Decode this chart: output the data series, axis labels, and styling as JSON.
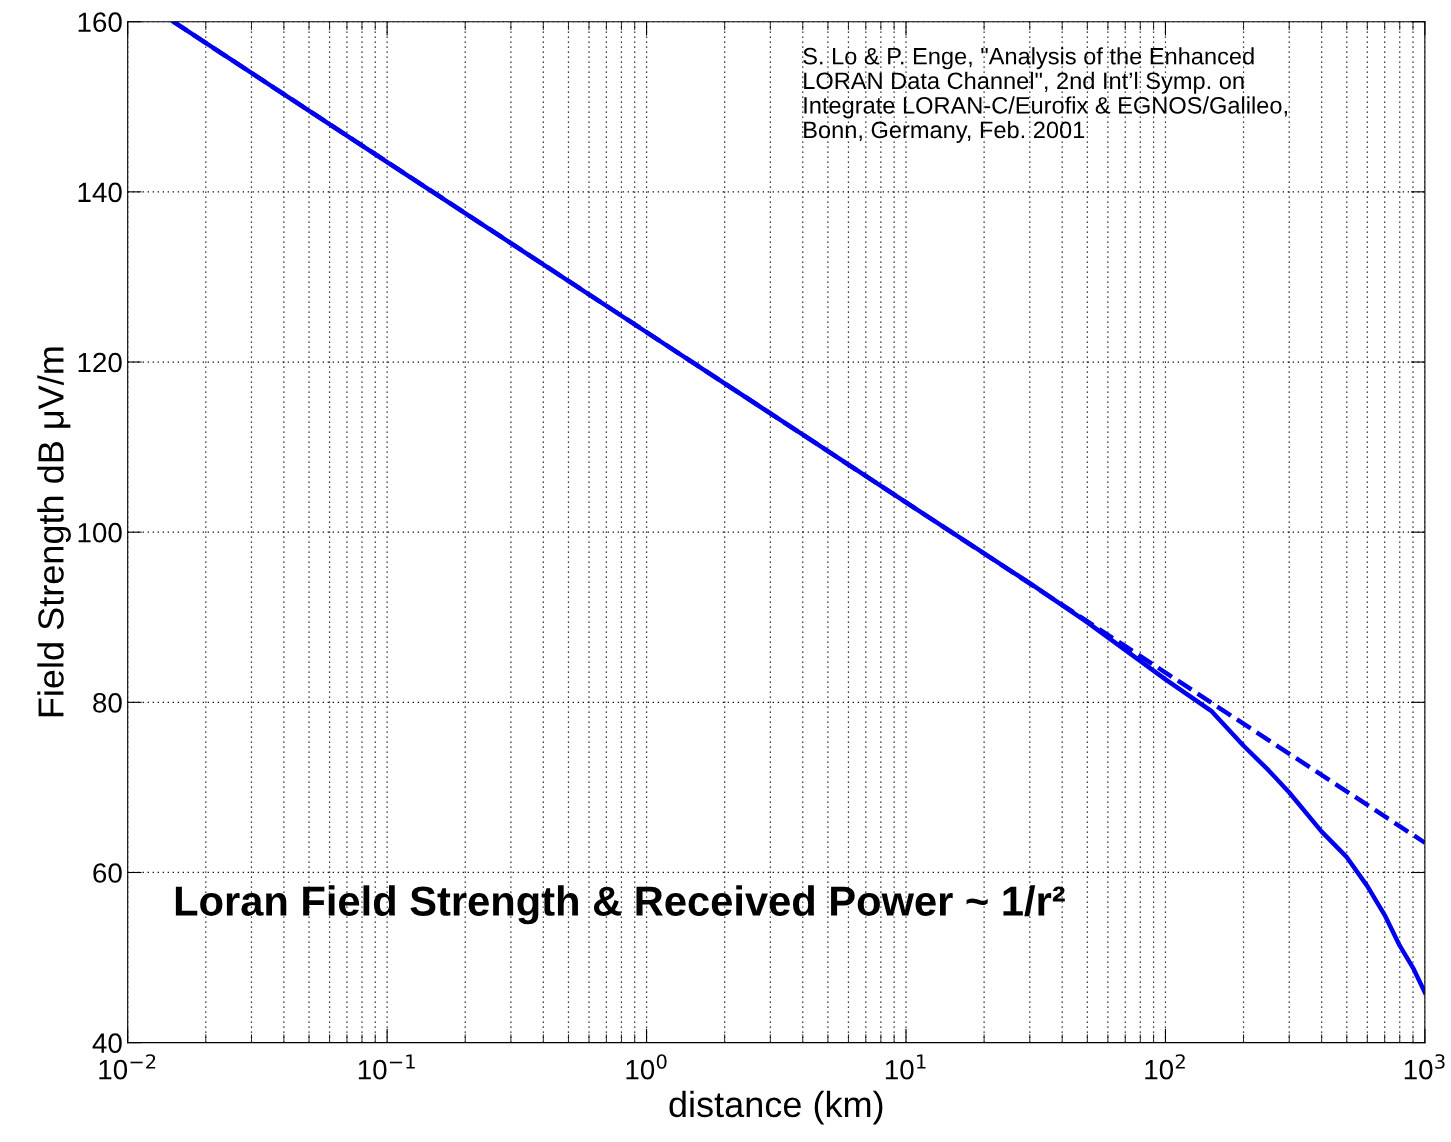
{
  "chart_data": {
    "type": "line",
    "xlabel": "distance (km)",
    "ylabel": "Field Strength dB μV/m",
    "log": "x",
    "xlim": [
      0.01,
      1000
    ],
    "ylim": [
      40,
      160
    ],
    "xticks": [
      {
        "value": 0.01,
        "label": "10$^{−2}$"
      },
      {
        "value": 0.1,
        "label": "10$^{−1}$"
      },
      {
        "value": 1,
        "label": "10$^{0}$"
      },
      {
        "value": 10,
        "label": "10$^{1}$"
      },
      {
        "value": 100,
        "label": "10$^{2}$"
      },
      {
        "value": 1000,
        "label": "10$^{3}$"
      }
    ],
    "yticks": [
      40,
      60,
      80,
      100,
      120,
      140,
      160
    ],
    "grid": true,
    "series": [
      {
        "color": "#0000ee",
        "line_style": "solid",
        "x": [
          0.015,
          0.1,
          1,
          10,
          20,
          30,
          50,
          100,
          150,
          200,
          250,
          300,
          400,
          500,
          600,
          700,
          800,
          900,
          1000
        ],
        "values": [
          160,
          143.5,
          123.5,
          103.5,
          97.5,
          94,
          89.4,
          82.7,
          79,
          74.9,
          72,
          69.4,
          64.8,
          61.8,
          58.4,
          55,
          51.4,
          48.8,
          45.9
        ]
      },
      {
        "color": "#0000ee",
        "line_style": "dashed",
        "x": [
          0.015,
          10,
          100,
          1000
        ],
        "values": [
          160,
          103.5,
          83.5,
          63.5
        ]
      }
    ],
    "annotations": [
      "S. Lo & P. Enge, \"Analysis of the Enhanced\nLORAN Data Channel\", 2nd Int’l Symp. on\nIntegrate LORAN-C/Eurofix & EGNOS/Galileo,\nBonn, Germany, Feb. 2001",
      "Loran Field Strength & Received Power ~ 1/r²"
    ]
  }
}
